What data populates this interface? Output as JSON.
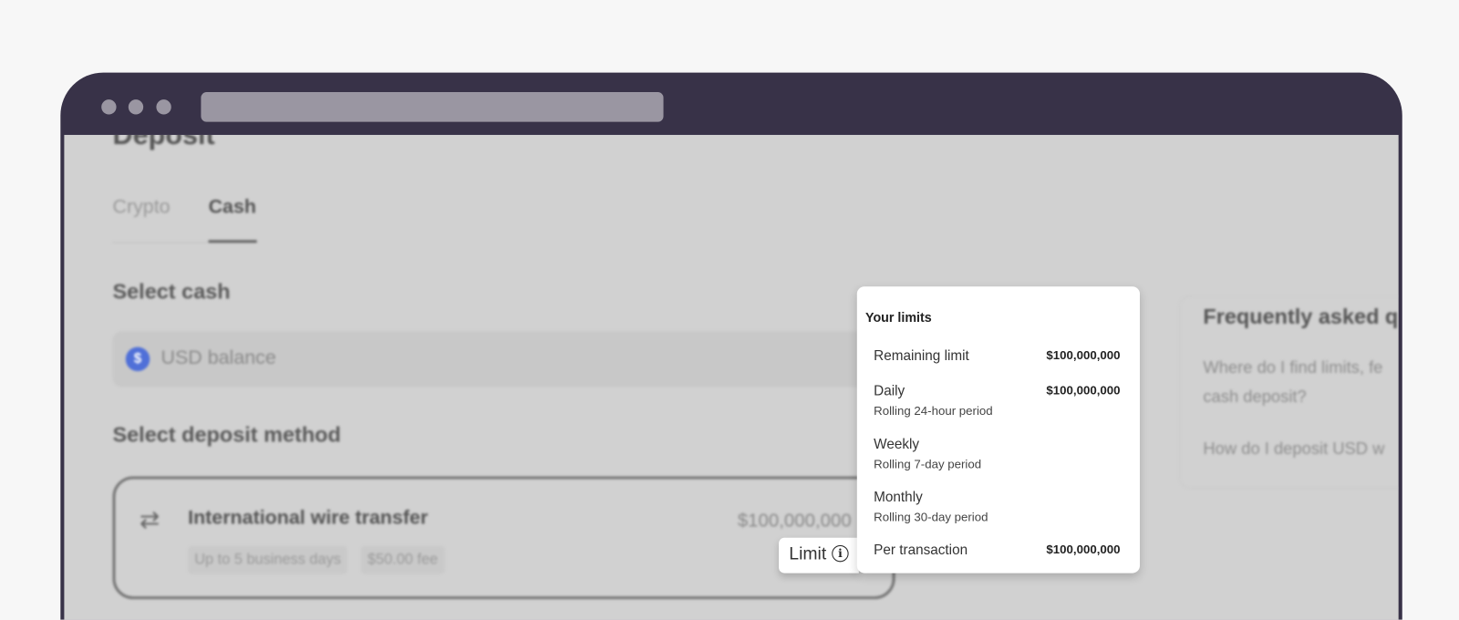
{
  "page": {
    "title": "Deposit",
    "tabs": [
      {
        "label": "Crypto",
        "active": false
      },
      {
        "label": "Cash",
        "active": true
      }
    ],
    "select_cash": {
      "heading": "Select cash",
      "value": "USD balance",
      "icon": "dollar-coin-icon",
      "icon_color": "#5070d8"
    },
    "deposit_method": {
      "heading": "Select deposit method",
      "card": {
        "icon": "swap-arrows-icon",
        "title": "International wire transfer",
        "amount": "$100,000,000",
        "chips": [
          "Up to 5 business days",
          "$50.00 fee"
        ],
        "limit_label": "Limit",
        "limit_icon": "info-icon"
      }
    },
    "faq": {
      "title": "Frequently asked q",
      "questions": [
        "Where do I find limits, fe",
        "cash deposit?",
        "How do I deposit USD w"
      ]
    }
  },
  "limits_popover": {
    "title": "Your limits",
    "rows": [
      {
        "label": "Remaining limit",
        "sub": "",
        "value": "$100,000,000"
      },
      {
        "label": "Daily",
        "sub": "Rolling 24-hour period",
        "value": "$100,000,000"
      },
      {
        "label": "Weekly",
        "sub": "Rolling 7-day period",
        "value": ""
      },
      {
        "label": "Monthly",
        "sub": "Rolling 30-day period",
        "value": ""
      },
      {
        "label": "Per transaction",
        "sub": "",
        "value": "$100,000,000"
      }
    ]
  },
  "colors": {
    "frame": "#383248",
    "overlay": "#d1d1d1",
    "background": "#f7f7f7"
  }
}
